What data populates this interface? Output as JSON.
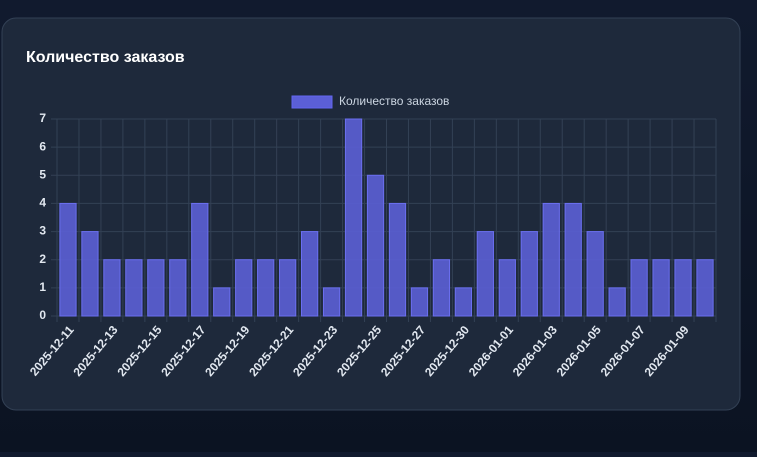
{
  "chart_data": {
    "type": "bar",
    "title": "Количество заказов",
    "series": [
      {
        "name": "Количество заказов",
        "color": "#5b5fd6",
        "values": [
          4,
          3,
          2,
          2,
          2,
          2,
          4,
          1,
          2,
          2,
          2,
          3,
          1,
          7,
          5,
          4,
          1,
          2,
          1,
          3,
          2,
          3,
          4,
          4,
          3,
          1,
          2,
          2,
          2,
          2
        ]
      }
    ],
    "categories": [
      "2025-12-11",
      null,
      "2025-12-13",
      null,
      "2025-12-15",
      null,
      "2025-12-17",
      null,
      "2025-12-19",
      null,
      "2025-12-21",
      null,
      "2025-12-23",
      null,
      "2025-12-25",
      null,
      "2025-12-27",
      null,
      "2025-12-30",
      null,
      "2026-01-01",
      null,
      "2026-01-03",
      null,
      "2026-01-05",
      null,
      "2026-01-07",
      null,
      "2026-01-09",
      null
    ],
    "ylim": [
      0,
      7
    ],
    "yticks": [
      0,
      1,
      2,
      3,
      4,
      5,
      6,
      7
    ],
    "grid": true,
    "legend": "top"
  }
}
